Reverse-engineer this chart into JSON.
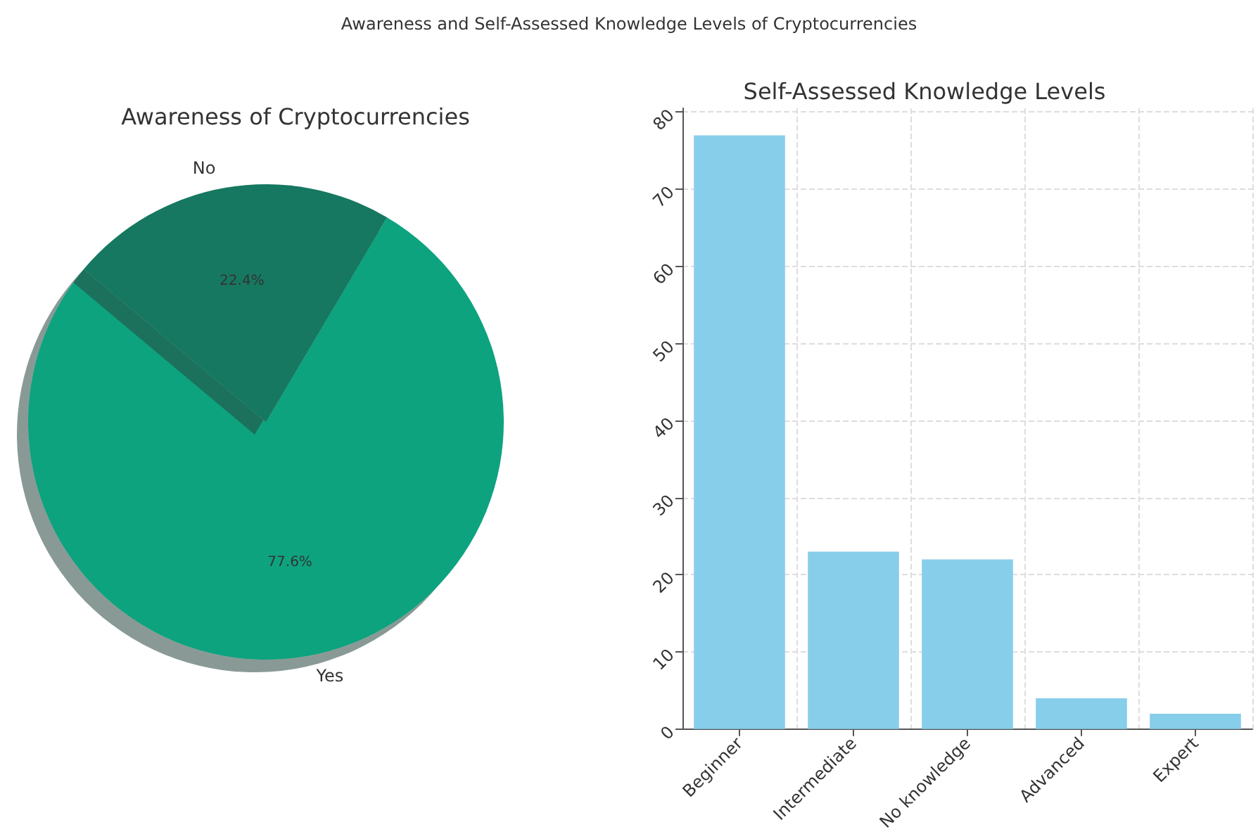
{
  "chart_data": [
    {
      "type": "pie",
      "title": "Awareness of Cryptocurrencies",
      "annotations": [
        "Awareness and Self-Assessed Knowledge Levels of Cryptocurrencies"
      ],
      "categories": [
        "Yes",
        "No"
      ],
      "values": [
        77.6,
        22.4
      ],
      "colors": [
        "#10a37f",
        "#147860"
      ],
      "value_labels": [
        "77.6%",
        "22.4%"
      ]
    },
    {
      "type": "bar",
      "title": "Self-Assessed Knowledge Levels",
      "categories": [
        "Beginner",
        "Intermediate",
        "No knowledge",
        "Advanced",
        "Expert"
      ],
      "values": [
        77,
        23,
        22,
        4,
        2
      ],
      "color": "#87ceeb",
      "ylim": [
        0,
        80.5
      ],
      "yticks": [
        0,
        10,
        20,
        30,
        40,
        50,
        60,
        70,
        80
      ],
      "grid": true
    }
  ]
}
